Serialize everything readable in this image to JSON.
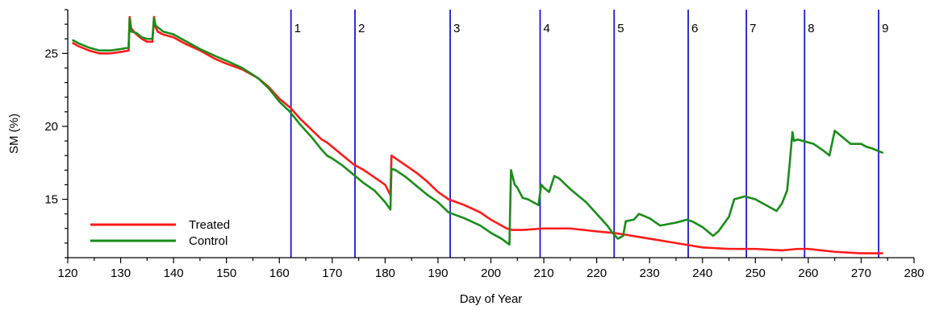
{
  "chart_data": {
    "type": "line",
    "xlabel": "Day of Year",
    "ylabel": "SM (%)",
    "xlim": [
      120,
      280
    ],
    "ylim": [
      11,
      28
    ],
    "x_ticks": [
      120,
      130,
      140,
      150,
      160,
      170,
      180,
      190,
      200,
      210,
      220,
      230,
      240,
      250,
      260,
      270,
      280
    ],
    "y_ticks": [
      15,
      20,
      25
    ],
    "grid": false,
    "legend_position": "bottom-left",
    "colors": {
      "treated": "#ff1a1a",
      "control": "#1a8c1a",
      "markers": "#1a1acc"
    },
    "vertical_markers": [
      {
        "label": "1",
        "x": 162.2
      },
      {
        "label": "2",
        "x": 174.3
      },
      {
        "label": "3",
        "x": 192.3
      },
      {
        "label": "4",
        "x": 209.3
      },
      {
        "label": "5",
        "x": 223.3
      },
      {
        "label": "6",
        "x": 237.3
      },
      {
        "label": "7",
        "x": 248.3
      },
      {
        "label": "8",
        "x": 259.3
      },
      {
        "label": "9",
        "x": 273.3
      }
    ],
    "series": [
      {
        "name": "Treated",
        "x": [
          121,
          122,
          124,
          126,
          128,
          130,
          131.5,
          131.7,
          132,
          133,
          134,
          135,
          136,
          136.3,
          136.6,
          137,
          138,
          140,
          142,
          145,
          148,
          150,
          153,
          156,
          158,
          160,
          162,
          164,
          166,
          168,
          169,
          170,
          172,
          174,
          176,
          178,
          180,
          181,
          181.2,
          182,
          184,
          186,
          188,
          190,
          192,
          195,
          198,
          200,
          202,
          203,
          204,
          206,
          210,
          215,
          220,
          223,
          225,
          230,
          235,
          240,
          245,
          250,
          255,
          258,
          260,
          265,
          270,
          274
        ],
        "y": [
          25.7,
          25.5,
          25.2,
          25.0,
          25.0,
          25.1,
          25.2,
          27.5,
          26.7,
          26.3,
          26.0,
          25.8,
          25.8,
          27.5,
          26.8,
          26.5,
          26.3,
          26.1,
          25.7,
          25.2,
          24.6,
          24.3,
          23.9,
          23.3,
          22.7,
          21.9,
          21.3,
          20.5,
          19.8,
          19.1,
          18.9,
          18.6,
          18.0,
          17.4,
          17.0,
          16.5,
          16.0,
          15.3,
          18.0,
          17.8,
          17.3,
          16.8,
          16.2,
          15.5,
          15.0,
          14.6,
          14.1,
          13.6,
          13.2,
          13.0,
          12.9,
          12.9,
          13.0,
          13.0,
          12.8,
          12.7,
          12.6,
          12.3,
          12.0,
          11.7,
          11.6,
          11.6,
          11.5,
          11.6,
          11.6,
          11.4,
          11.3,
          11.3
        ]
      },
      {
        "name": "Control",
        "x": [
          121,
          122,
          124,
          126,
          128,
          130,
          131.5,
          131.7,
          132,
          133,
          134,
          135,
          136,
          136.3,
          136.6,
          137,
          138,
          140,
          142,
          145,
          148,
          150,
          153,
          156,
          158,
          160,
          162,
          164,
          166,
          168,
          169,
          170,
          172,
          174,
          176,
          178,
          180,
          181,
          181.2,
          182,
          184,
          186,
          188,
          190,
          192,
          195,
          198,
          200,
          202,
          203.5,
          203.8,
          204.5,
          205,
          206,
          207,
          208,
          209,
          209.5,
          210,
          211,
          212,
          213,
          215,
          218,
          220,
          222,
          223,
          224,
          225,
          225.5,
          227,
          228,
          230,
          232,
          235,
          237,
          238,
          240,
          242,
          243,
          245,
          246,
          247,
          248,
          250,
          252,
          254,
          255,
          256,
          256.5,
          257,
          257.3,
          258,
          259,
          261,
          263,
          264,
          265,
          266,
          268,
          270,
          271,
          272,
          274
        ],
        "y": [
          25.9,
          25.7,
          25.4,
          25.2,
          25.2,
          25.3,
          25.4,
          27.4,
          26.5,
          26.4,
          26.1,
          26.0,
          26.0,
          27.4,
          26.9,
          26.8,
          26.5,
          26.3,
          25.9,
          25.3,
          24.8,
          24.5,
          24.0,
          23.3,
          22.6,
          21.7,
          21.0,
          20.1,
          19.3,
          18.4,
          18.0,
          17.8,
          17.3,
          16.7,
          16.1,
          15.6,
          14.8,
          14.3,
          17.1,
          17.0,
          16.5,
          15.9,
          15.3,
          14.8,
          14.1,
          13.7,
          13.2,
          12.7,
          12.3,
          11.9,
          17.0,
          16.0,
          15.8,
          15.1,
          15.0,
          14.8,
          14.6,
          16.0,
          15.8,
          15.5,
          16.6,
          16.4,
          15.7,
          14.8,
          14.0,
          13.2,
          12.7,
          12.3,
          12.5,
          13.5,
          13.6,
          14.0,
          13.7,
          13.2,
          13.4,
          13.6,
          13.5,
          13.1,
          12.5,
          12.8,
          13.8,
          15.0,
          15.1,
          15.2,
          15.0,
          14.6,
          14.2,
          14.7,
          15.6,
          17.5,
          19.6,
          19.0,
          19.1,
          19.0,
          18.8,
          18.3,
          18.0,
          19.7,
          19.4,
          18.8,
          18.8,
          18.6,
          18.5,
          18.2
        ]
      }
    ]
  }
}
